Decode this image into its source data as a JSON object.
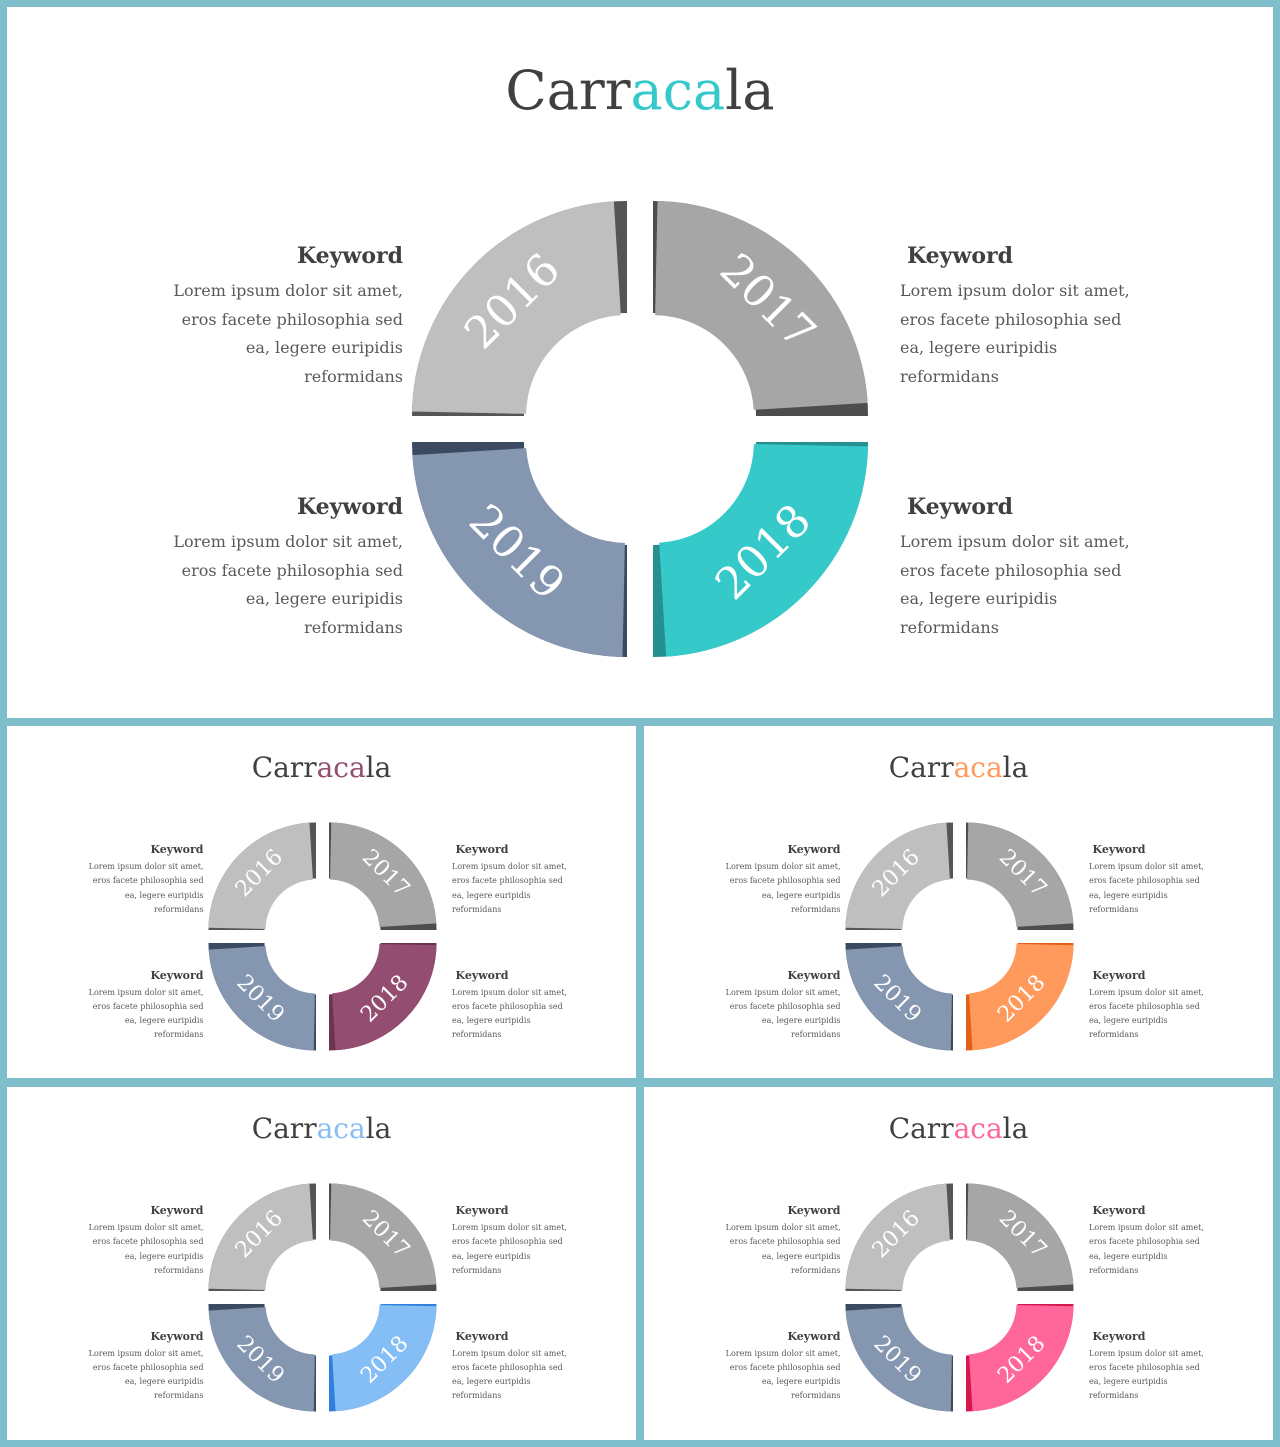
{
  "slides": [
    {
      "id": "slide-main",
      "title_prefix": "Carr",
      "title_highlight": "aca",
      "title_suffix": "la",
      "accent": "#36c9c9",
      "accent_dark": "#268f8f",
      "segments": [
        {
          "year": "2016",
          "keyword": "Keyword",
          "text": [
            "Lorem ipsum dolor sit amet,",
            "eros facete philosophia sed",
            "ea, legere euripidis",
            "reformidans"
          ]
        },
        {
          "year": "2017",
          "keyword": "Keyword",
          "text": [
            "Lorem ipsum dolor sit amet,",
            "eros facete philosophia sed",
            "ea, legere euripidis",
            "reformidans"
          ]
        },
        {
          "year": "2018",
          "keyword": "Keyword",
          "text": [
            "Lorem ipsum dolor sit amet,",
            "eros facete philosophia sed",
            "ea, legere euripidis",
            "reformidans"
          ]
        },
        {
          "year": "2019",
          "keyword": "Keyword",
          "text": [
            "Lorem ipsum dolor sit amet,",
            "eros facete philosophia sed",
            "ea, legere euripidis",
            "reformidans"
          ]
        }
      ]
    },
    {
      "id": "slide-plum",
      "title_prefix": "Carr",
      "title_highlight": "aca",
      "title_suffix": "la",
      "accent": "#934d70",
      "accent_dark": "#6a3450",
      "segments": [
        {
          "year": "2016",
          "keyword": "Keyword",
          "text": [
            "Lorem ipsum dolor sit amet,",
            "eros facete philosophia sed",
            "ea, legere euripidis",
            "reformidans"
          ]
        },
        {
          "year": "2017",
          "keyword": "Keyword",
          "text": [
            "Lorem ipsum dolor sit amet,",
            "eros facete philosophia sed",
            "ea, legere euripidis",
            "reformidans"
          ]
        },
        {
          "year": "2018",
          "keyword": "Keyword",
          "text": [
            "Lorem ipsum dolor sit amet,",
            "eros facete philosophia sed",
            "ea, legere euripidis",
            "reformidans"
          ]
        },
        {
          "year": "2019",
          "keyword": "Keyword",
          "text": [
            "Lorem ipsum dolor sit amet,",
            "eros facete philosophia sed",
            "ea, legere euripidis",
            "reformidans"
          ]
        }
      ]
    },
    {
      "id": "slide-orange",
      "title_prefix": "Carr",
      "title_highlight": "aca",
      "title_suffix": "la",
      "accent": "#ff9a5c",
      "accent_dark": "#e0621a",
      "segments": [
        {
          "year": "2016",
          "keyword": "Keyword",
          "text": [
            "Lorem ipsum dolor sit amet,",
            "eros facete philosophia sed",
            "ea, legere euripidis",
            "reformidans"
          ]
        },
        {
          "year": "2017",
          "keyword": "Keyword",
          "text": [
            "Lorem ipsum dolor sit amet,",
            "eros facete philosophia sed",
            "ea, legere euripidis",
            "reformidans"
          ]
        },
        {
          "year": "2018",
          "keyword": "Keyword",
          "text": [
            "Lorem ipsum dolor sit amet,",
            "eros facete philosophia sed",
            "ea, legere euripidis",
            "reformidans"
          ]
        },
        {
          "year": "2019",
          "keyword": "Keyword",
          "text": [
            "Lorem ipsum dolor sit amet,",
            "eros facete philosophia sed",
            "ea, legere euripidis",
            "reformidans"
          ]
        }
      ]
    },
    {
      "id": "slide-blue",
      "title_prefix": "Carr",
      "title_highlight": "aca",
      "title_suffix": "la",
      "accent": "#85bdf5",
      "accent_dark": "#2f7fdc",
      "segments": [
        {
          "year": "2016",
          "keyword": "Keyword",
          "text": [
            "Lorem ipsum dolor sit amet,",
            "eros facete philosophia sed",
            "ea, legere euripidis",
            "reformidans"
          ]
        },
        {
          "year": "2017",
          "keyword": "Keyword",
          "text": [
            "Lorem ipsum dolor sit amet,",
            "eros facete philosophia sed",
            "ea, legere euripidis",
            "reformidans"
          ]
        },
        {
          "year": "2018",
          "keyword": "Keyword",
          "text": [
            "Lorem ipsum dolor sit amet,",
            "eros facete philosophia sed",
            "ea, legere euripidis",
            "reformidans"
          ]
        },
        {
          "year": "2019",
          "keyword": "Keyword",
          "text": [
            "Lorem ipsum dolor sit amet,",
            "eros facete philosophia sed",
            "ea, legere euripidis",
            "reformidans"
          ]
        }
      ]
    },
    {
      "id": "slide-pink",
      "title_prefix": "Carr",
      "title_highlight": "aca",
      "title_suffix": "la",
      "accent": "#ff6699",
      "accent_dark": "#d4184f",
      "segments": [
        {
          "year": "2016",
          "keyword": "Keyword",
          "text": [
            "Lorem ipsum dolor sit amet,",
            "eros facete philosophia sed",
            "ea, legere euripidis",
            "reformidans"
          ]
        },
        {
          "year": "2017",
          "keyword": "Keyword",
          "text": [
            "Lorem ipsum dolor sit amet,",
            "eros facete philosophia sed",
            "ea, legere euripidis",
            "reformidans"
          ]
        },
        {
          "year": "2018",
          "keyword": "Keyword",
          "text": [
            "Lorem ipsum dolor sit amet,",
            "eros facete philosophia sed",
            "ea, legere euripidis",
            "reformidans"
          ]
        },
        {
          "year": "2019",
          "keyword": "Keyword",
          "text": [
            "Lorem ipsum dolor sit amet,",
            "eros facete philosophia sed",
            "ea, legere euripidis",
            "reformidans"
          ]
        }
      ]
    }
  ],
  "palette": {
    "seg_2016": "#bfbfbf",
    "seg_2016_shadow": "#555555",
    "seg_2017": "#a6a6a6",
    "seg_2017_shadow": "#4d4d4d",
    "seg_2019": "#8496b0",
    "seg_2019_shadow": "#3b4a60"
  }
}
